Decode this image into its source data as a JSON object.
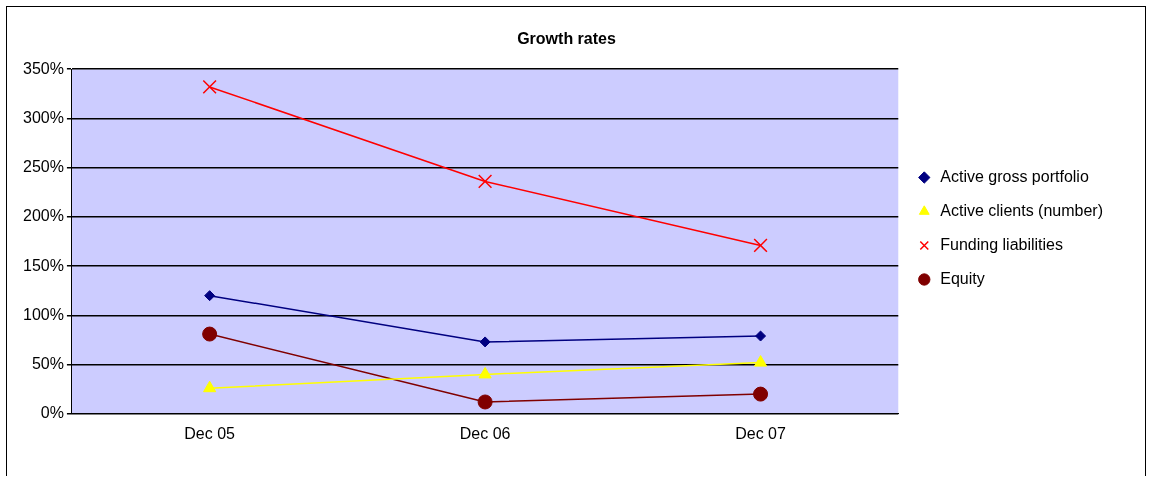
{
  "chart_data": {
    "type": "line",
    "title": "Growth rates",
    "categories": [
      "Dec 05",
      "Dec 06",
      "Dec 07"
    ],
    "series": [
      {
        "name": "Active gross portfolio",
        "color": "#000080",
        "marker": "diamond",
        "values": [
          120,
          73,
          79
        ]
      },
      {
        "name": "Active clients (number)",
        "color": "#ffff00",
        "marker": "triangle",
        "values": [
          26,
          40,
          52
        ]
      },
      {
        "name": "Funding liabilities",
        "color": "#ff0000",
        "marker": "cross",
        "values": [
          332,
          236,
          171
        ]
      },
      {
        "name": "Equity",
        "color": "#800000",
        "marker": "circle",
        "values": [
          81,
          12,
          20
        ]
      }
    ],
    "ylim": [
      0,
      350
    ],
    "yticks": [
      {
        "value": 0,
        "label": "0%"
      },
      {
        "value": 50,
        "label": "50%"
      },
      {
        "value": 100,
        "label": "100%"
      },
      {
        "value": 150,
        "label": "150%"
      },
      {
        "value": 200,
        "label": "200%"
      },
      {
        "value": 250,
        "label": "250%"
      },
      {
        "value": 300,
        "label": "300%"
      },
      {
        "value": 350,
        "label": "350%"
      }
    ],
    "grid": "y",
    "legend": "right"
  }
}
